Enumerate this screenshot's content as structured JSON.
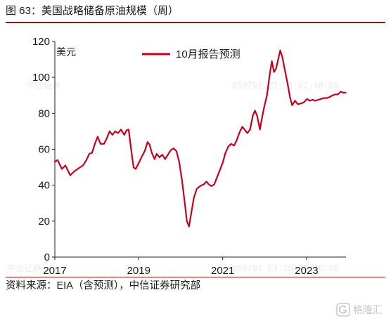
{
  "source": "资料来源：EIA（含预测），中信证券研究部",
  "logo_text": "格隆汇",
  "watermark": [
    "中信证券",
    "050791 E3:2B:A2:4B:0D",
    "中信证券",
    "050791 E3:2B:A2:4B:0D"
  ],
  "colors": {
    "series": "#c8001e",
    "rule": "#8c1b1b",
    "axis": "#222222"
  },
  "icons": {
    "logo": "gelonghui-logo-icon"
  },
  "chart_data": {
    "type": "line",
    "title": "图 63：美国战略储备原油规模（周）",
    "xlabel": "",
    "ylabel": "美元",
    "xlim": [
      "2017-01-01",
      "2023-12-10"
    ],
    "ylim": [
      0,
      120
    ],
    "yticks": [
      0,
      20,
      40,
      60,
      80,
      100,
      120
    ],
    "xticks": [
      {
        "label": "2017",
        "date": "2017-01-01"
      },
      {
        "label": "2019",
        "date": "2019-01-01"
      },
      {
        "label": "2021",
        "date": "2021-01-01"
      },
      {
        "label": "2023",
        "date": "2023-01-01"
      }
    ],
    "grid": false,
    "legend": "top-center",
    "x": [
      "2017-01-01",
      "2017-01-25",
      "2017-03-03",
      "2017-04-03",
      "2017-05-15",
      "2017-06-15",
      "2017-07-28",
      "2017-09-03",
      "2017-10-03",
      "2017-10-28",
      "2017-11-21",
      "2017-12-15",
      "2018-01-09",
      "2018-02-02",
      "2018-03-05",
      "2018-03-29",
      "2018-04-23",
      "2018-05-17",
      "2018-06-11",
      "2018-07-05",
      "2018-07-30",
      "2018-08-29",
      "2018-09-17",
      "2018-10-05",
      "2018-10-29",
      "2018-11-17",
      "2018-12-05",
      "2018-12-29",
      "2019-01-29",
      "2019-02-22",
      "2019-03-19",
      "2019-04-06",
      "2019-04-25",
      "2019-05-19",
      "2019-06-06",
      "2019-07-01",
      "2019-07-25",
      "2019-08-19",
      "2019-09-12",
      "2019-10-07",
      "2019-10-31",
      "2019-11-25",
      "2019-12-19",
      "2020-01-12",
      "2020-02-06",
      "2020-02-24",
      "2020-03-14",
      "2020-04-01",
      "2020-04-25",
      "2020-05-20",
      "2020-06-19",
      "2020-07-20",
      "2020-08-13",
      "2020-09-01",
      "2020-09-25",
      "2020-10-20",
      "2020-11-13",
      "2020-12-08",
      "2021-01-01",
      "2021-01-25",
      "2021-02-19",
      "2021-03-15",
      "2021-04-09",
      "2021-05-03",
      "2021-05-28",
      "2021-06-21",
      "2021-07-16",
      "2021-08-03",
      "2021-08-27",
      "2021-09-21",
      "2021-10-09",
      "2021-10-28",
      "2021-11-21",
      "2021-12-09",
      "2021-12-28",
      "2022-01-21",
      "2022-02-15",
      "2022-03-05",
      "2022-03-23",
      "2022-04-11",
      "2022-04-29",
      "2022-05-17",
      "2022-06-05",
      "2022-06-23",
      "2022-07-18",
      "2022-08-11",
      "2022-08-29",
      "2022-09-23",
      "2022-10-17",
      "2022-11-11",
      "2022-12-05",
      "2023-01-05",
      "2023-01-29",
      "2023-02-23",
      "2023-03-19",
      "2023-04-12",
      "2023-05-07",
      "2023-05-31",
      "2023-06-25",
      "2023-07-19",
      "2023-08-13",
      "2023-09-06",
      "2023-09-30",
      "2023-10-25",
      "2023-11-18",
      "2023-12-07"
    ],
    "series": [
      {
        "name": "10月报告预测",
        "values": [
          53,
          54,
          49,
          51,
          45.5,
          47.5,
          49.5,
          51,
          54,
          57.5,
          58,
          63,
          67,
          63,
          63,
          66,
          70,
          68,
          70,
          69,
          71,
          68,
          70.5,
          71,
          59,
          50,
          49,
          52,
          56,
          59,
          64,
          62.5,
          58,
          54.5,
          57.5,
          55.5,
          57,
          54.5,
          57,
          59.5,
          60.5,
          59,
          53,
          43,
          30,
          20,
          17,
          24,
          33,
          38,
          39.5,
          40.5,
          42,
          40.5,
          39.5,
          40.5,
          44.5,
          48.5,
          52.5,
          58,
          61.5,
          63,
          62,
          65,
          69.5,
          72.5,
          70.5,
          69,
          71,
          79,
          81.5,
          78.5,
          71,
          77.5,
          83.5,
          90,
          102,
          109,
          103,
          105,
          110,
          115,
          111,
          105,
          97,
          88.5,
          84.5,
          87,
          85,
          85.5,
          86,
          88,
          87,
          87.5,
          87,
          87.5,
          88,
          88.5,
          88.5,
          89,
          90,
          90.5,
          90.5,
          92,
          91.5,
          91.5
        ]
      }
    ]
  }
}
